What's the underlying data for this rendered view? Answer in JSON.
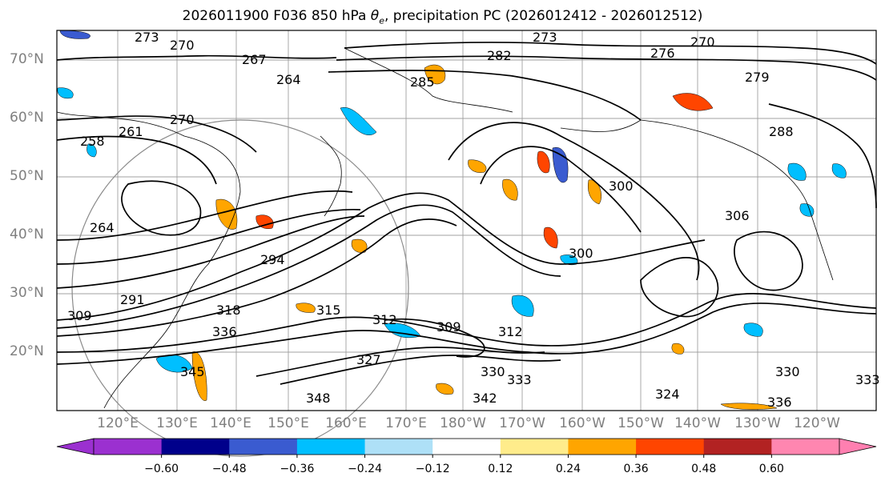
{
  "title": {
    "prefix": "2026011900 F036 850 hPa ",
    "theta_symbol": "θ",
    "theta_sub": "e",
    "suffix": ", precipitation PC (2026012412 - 2026012512)"
  },
  "lat_labels": [
    "70°N",
    "60°N",
    "50°N",
    "40°N",
    "30°N",
    "20°N"
  ],
  "lon_labels": [
    "120°E",
    "130°E",
    "140°E",
    "150°E",
    "160°E",
    "170°E",
    "180°W",
    "170°W",
    "160°W",
    "150°W",
    "140°W",
    "130°W",
    "120°W"
  ],
  "contour_labels": [
    "273",
    "270",
    "267",
    "264",
    "261",
    "258",
    "270",
    "264",
    "273",
    "270",
    "276",
    "282",
    "285",
    "279",
    "288",
    "300",
    "306",
    "309",
    "312",
    "315",
    "318",
    "294",
    "291",
    "300",
    "327",
    "330",
    "333",
    "336",
    "342",
    "345",
    "348",
    "324",
    "330",
    "336",
    "333",
    "309",
    "312"
  ],
  "colorbar": {
    "ticks": [
      "−0.60",
      "−0.48",
      "−0.36",
      "−0.24",
      "−0.12",
      "0.12",
      "0.24",
      "0.36",
      "0.48",
      "0.60"
    ],
    "under_color": "#9b30d0",
    "over_color": "#ff7fb0",
    "colors": [
      "#9b30d0",
      "#00008b",
      "#3a5bd0",
      "#00bfff",
      "#aee0f7",
      "#ffffff",
      "#ffec8b",
      "#ffa500",
      "#ff4500",
      "#b22222",
      "#ff86b0"
    ]
  }
}
